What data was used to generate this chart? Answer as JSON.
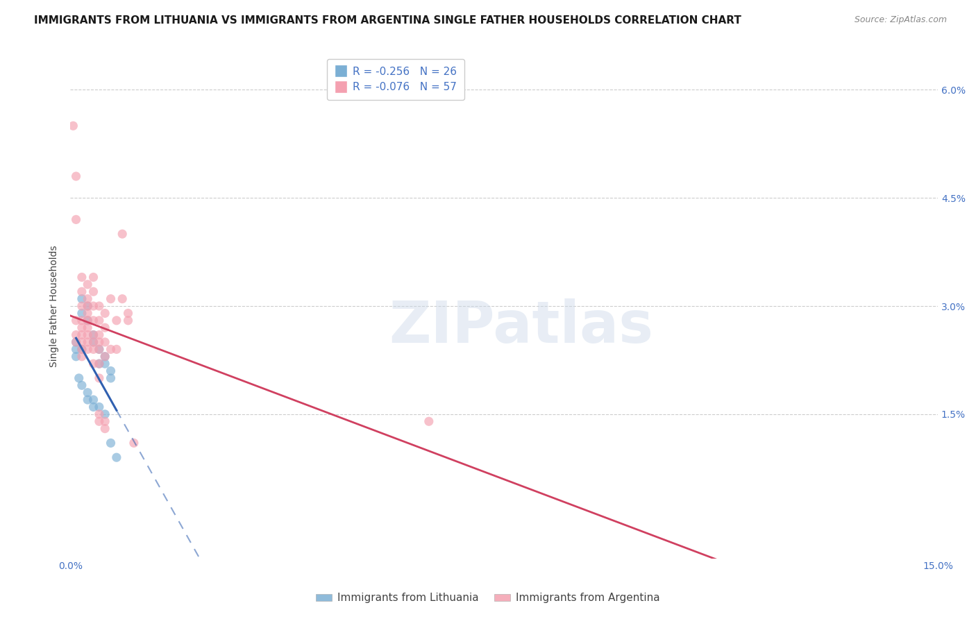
{
  "title": "IMMIGRANTS FROM LITHUANIA VS IMMIGRANTS FROM ARGENTINA SINGLE FATHER HOUSEHOLDS CORRELATION CHART",
  "source": "Source: ZipAtlas.com",
  "ylabel": "Single Father Households",
  "right_yticks": [
    "6.0%",
    "4.5%",
    "3.0%",
    "1.5%"
  ],
  "right_ytick_vals": [
    0.06,
    0.045,
    0.03,
    0.015
  ],
  "xlim": [
    0.0,
    0.15
  ],
  "ylim": [
    -0.005,
    0.065
  ],
  "legend_r_blue": "R = -0.256",
  "legend_n_blue": "N = 26",
  "legend_r_pink": "R = -0.076",
  "legend_n_pink": "N = 57",
  "legend_label_blue": "Immigrants from Lithuania",
  "legend_label_pink": "Immigrants from Argentina",
  "watermark": "ZIPatlas",
  "blue_color": "#7bafd4",
  "pink_color": "#f4a0b0",
  "blue_line_color": "#3060b0",
  "pink_line_color": "#d04060",
  "blue_scatter": [
    [
      0.001,
      0.025
    ],
    [
      0.001,
      0.024
    ],
    [
      0.001,
      0.023
    ],
    [
      0.002,
      0.031
    ],
    [
      0.002,
      0.029
    ],
    [
      0.002,
      0.024
    ],
    [
      0.003,
      0.03
    ],
    [
      0.003,
      0.028
    ],
    [
      0.004,
      0.026
    ],
    [
      0.004,
      0.025
    ],
    [
      0.005,
      0.024
    ],
    [
      0.005,
      0.022
    ],
    [
      0.006,
      0.023
    ],
    [
      0.006,
      0.022
    ],
    [
      0.007,
      0.021
    ],
    [
      0.007,
      0.02
    ],
    [
      0.0015,
      0.02
    ],
    [
      0.002,
      0.019
    ],
    [
      0.003,
      0.018
    ],
    [
      0.003,
      0.017
    ],
    [
      0.004,
      0.017
    ],
    [
      0.004,
      0.016
    ],
    [
      0.005,
      0.016
    ],
    [
      0.006,
      0.015
    ],
    [
      0.007,
      0.011
    ],
    [
      0.008,
      0.009
    ]
  ],
  "pink_scatter": [
    [
      0.0005,
      0.055
    ],
    [
      0.001,
      0.048
    ],
    [
      0.001,
      0.042
    ],
    [
      0.001,
      0.028
    ],
    [
      0.001,
      0.026
    ],
    [
      0.001,
      0.025
    ],
    [
      0.002,
      0.034
    ],
    [
      0.002,
      0.032
    ],
    [
      0.002,
      0.03
    ],
    [
      0.002,
      0.028
    ],
    [
      0.002,
      0.027
    ],
    [
      0.002,
      0.026
    ],
    [
      0.002,
      0.025
    ],
    [
      0.002,
      0.024
    ],
    [
      0.002,
      0.023
    ],
    [
      0.003,
      0.033
    ],
    [
      0.003,
      0.031
    ],
    [
      0.003,
      0.03
    ],
    [
      0.003,
      0.029
    ],
    [
      0.003,
      0.028
    ],
    [
      0.003,
      0.027
    ],
    [
      0.003,
      0.026
    ],
    [
      0.003,
      0.025
    ],
    [
      0.003,
      0.024
    ],
    [
      0.004,
      0.034
    ],
    [
      0.004,
      0.032
    ],
    [
      0.004,
      0.03
    ],
    [
      0.004,
      0.028
    ],
    [
      0.004,
      0.026
    ],
    [
      0.004,
      0.025
    ],
    [
      0.004,
      0.024
    ],
    [
      0.004,
      0.022
    ],
    [
      0.005,
      0.03
    ],
    [
      0.005,
      0.028
    ],
    [
      0.005,
      0.026
    ],
    [
      0.005,
      0.025
    ],
    [
      0.005,
      0.024
    ],
    [
      0.005,
      0.022
    ],
    [
      0.005,
      0.02
    ],
    [
      0.005,
      0.015
    ],
    [
      0.005,
      0.014
    ],
    [
      0.006,
      0.029
    ],
    [
      0.006,
      0.027
    ],
    [
      0.006,
      0.025
    ],
    [
      0.006,
      0.023
    ],
    [
      0.006,
      0.014
    ],
    [
      0.006,
      0.013
    ],
    [
      0.007,
      0.031
    ],
    [
      0.007,
      0.024
    ],
    [
      0.008,
      0.028
    ],
    [
      0.008,
      0.024
    ],
    [
      0.009,
      0.04
    ],
    [
      0.009,
      0.031
    ],
    [
      0.01,
      0.029
    ],
    [
      0.01,
      0.028
    ],
    [
      0.011,
      0.011
    ],
    [
      0.062,
      0.014
    ]
  ],
  "blue_size": 90,
  "pink_size": 90,
  "grid_color": "#cccccc",
  "background_color": "#ffffff",
  "title_fontsize": 11,
  "axis_label_fontsize": 10,
  "tick_fontsize": 10,
  "legend_fontsize": 11
}
